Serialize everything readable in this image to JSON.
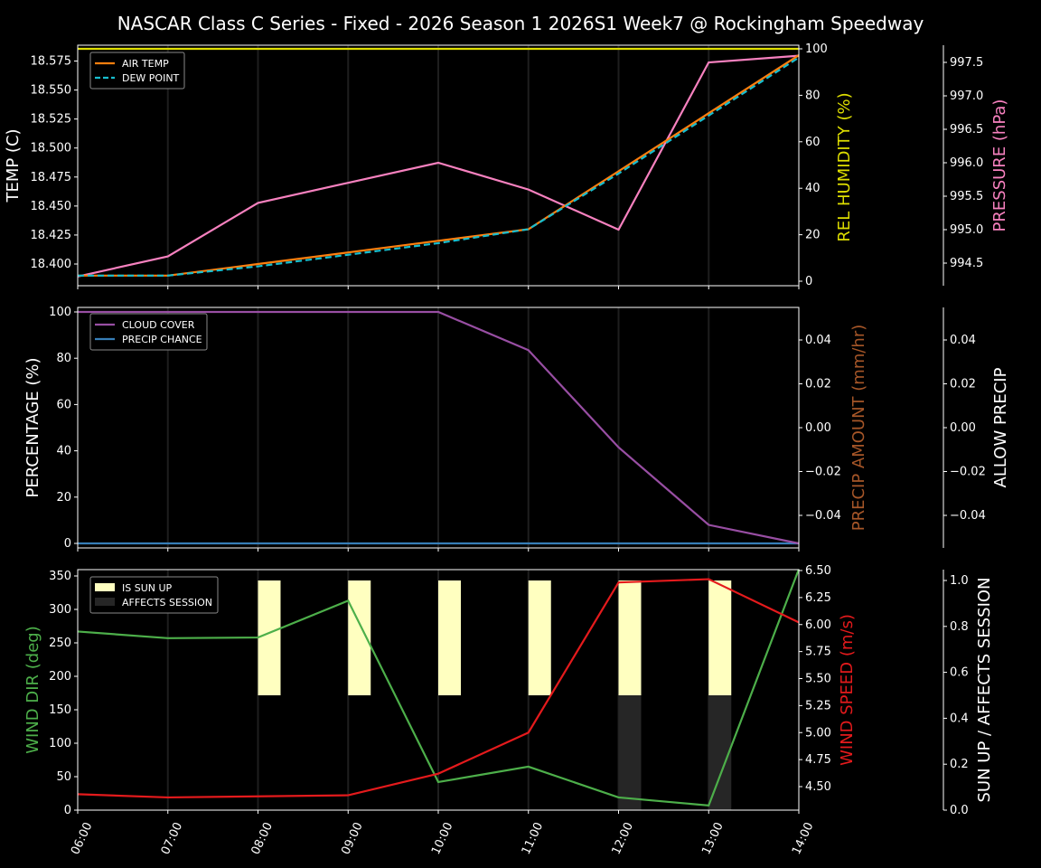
{
  "title": "NASCAR Class C Series - Fixed - 2026 Season 1 2026S1 Week7 @ Rockingham Speedway",
  "colors": {
    "air_temp": "#ff7f0e",
    "dew_point": "#17becf",
    "rel_humidity": "#dede00",
    "pressure": "#f781bf",
    "cloud_cover": "#984ea3",
    "precip_chance": "#377eb8",
    "precip_amount_label": "#a65628",
    "wind_dir": "#4daf4a",
    "wind_speed": "#e41a1c",
    "sun_up": "#ffffc0",
    "affects_session": "#262626"
  },
  "chart_data": [
    {
      "type": "line",
      "panel": "top",
      "x": [
        "06:00",
        "07:00",
        "08:00",
        "09:00",
        "10:00",
        "11:00",
        "12:00",
        "13:00",
        "14:00"
      ],
      "series": [
        {
          "name": "AIR TEMP",
          "axis": "left",
          "values": [
            18.39,
            18.39,
            18.4,
            18.41,
            18.42,
            18.43,
            18.48,
            18.53,
            18.58
          ]
        },
        {
          "name": "DEW POINT",
          "axis": "left",
          "style": "dashed",
          "values": [
            18.39,
            18.39,
            18.398,
            18.408,
            18.418,
            18.43,
            18.478,
            18.528,
            18.578
          ]
        },
        {
          "name": "REL HUMIDITY",
          "axis": "right1",
          "values": [
            100,
            100,
            100,
            100,
            100,
            100,
            100,
            100,
            100
          ]
        },
        {
          "name": "PRESSURE",
          "axis": "right2",
          "values": [
            994.3,
            994.6,
            995.4,
            995.7,
            996.0,
            995.6,
            995.0,
            997.5,
            997.6
          ]
        }
      ],
      "ylabel": "TEMP (C)",
      "yticks": [
        "18.400",
        "18.425",
        "18.450",
        "18.475",
        "18.500",
        "18.525",
        "18.550",
        "18.575"
      ],
      "ylabel_right1": "REL HUMIDITY (%)",
      "yticks_right1": [
        "0",
        "20",
        "40",
        "60",
        "80",
        "100"
      ],
      "ylabel_right2": "PRESSURE (hPa)",
      "yticks_right2": [
        "994.5",
        "995.0",
        "995.5",
        "996.0",
        "996.5",
        "997.0",
        "997.5"
      ],
      "legend": [
        "AIR TEMP",
        "DEW POINT"
      ],
      "legend_position": "upper left"
    },
    {
      "type": "line",
      "panel": "middle",
      "x": [
        "06:00",
        "07:00",
        "08:00",
        "09:00",
        "10:00",
        "11:00",
        "12:00",
        "13:00",
        "14:00"
      ],
      "series": [
        {
          "name": "CLOUD COVER",
          "axis": "left",
          "values": [
            100,
            100,
            100,
            100,
            100,
            83.5,
            41.5,
            8,
            0
          ]
        },
        {
          "name": "PRECIP CHANCE",
          "axis": "left",
          "values": [
            0,
            0,
            0,
            0,
            0,
            0,
            0,
            0,
            0
          ]
        }
      ],
      "ylabel": "PERCENTAGE (%)",
      "yticks": [
        "0",
        "20",
        "40",
        "60",
        "80",
        "100"
      ],
      "ylabel_right1": "PRECIP AMOUNT (mm/hr)",
      "yticks_right1": [
        "−0.04",
        "−0.02",
        "0.00",
        "0.02",
        "0.04"
      ],
      "ylabel_right2": "ALLOW PRECIP",
      "yticks_right2": [
        "−0.04",
        "−0.02",
        "0.00",
        "0.02",
        "0.04"
      ],
      "legend": [
        "CLOUD COVER",
        "PRECIP CHANCE"
      ],
      "legend_position": "upper left"
    },
    {
      "type": "line",
      "panel": "bottom",
      "x": [
        "06:00",
        "07:00",
        "08:00",
        "09:00",
        "10:00",
        "11:00",
        "12:00",
        "13:00",
        "14:00"
      ],
      "series": [
        {
          "name": "WIND DIR",
          "axis": "left",
          "values": [
            267,
            257,
            258,
            313,
            42,
            65,
            19,
            7,
            360
          ]
        },
        {
          "name": "WIND SPEED",
          "axis": "right1",
          "values": [
            4.43,
            4.4,
            4.41,
            4.42,
            4.62,
            5.0,
            6.39,
            6.42,
            6.02
          ]
        },
        {
          "name": "IS SUN UP",
          "type": "bar",
          "axis": "right2",
          "values": [
            0,
            0,
            1,
            1,
            1,
            1,
            1,
            1,
            0
          ]
        },
        {
          "name": "AFFECTS SESSION",
          "type": "bar",
          "axis": "right2",
          "values": [
            0,
            0,
            0,
            0,
            0,
            0,
            0.5,
            0.5,
            0
          ]
        }
      ],
      "ylabel": "WIND DIR (deg)",
      "yticks": [
        "0",
        "50",
        "100",
        "150",
        "200",
        "250",
        "300",
        "350"
      ],
      "ylabel_right1": "WIND SPEED (m/s)",
      "yticks_right1": [
        "4.50",
        "4.75",
        "5.00",
        "5.25",
        "5.50",
        "5.75",
        "6.00",
        "6.25",
        "6.50"
      ],
      "ylabel_right2": "SUN UP / AFFECTS SESSION",
      "yticks_right2": [
        "0.0",
        "0.2",
        "0.4",
        "0.6",
        "0.8",
        "1.0"
      ],
      "legend": [
        "IS SUN UP",
        "AFFECTS SESSION"
      ],
      "legend_position": "upper left",
      "xlabel": ""
    }
  ]
}
